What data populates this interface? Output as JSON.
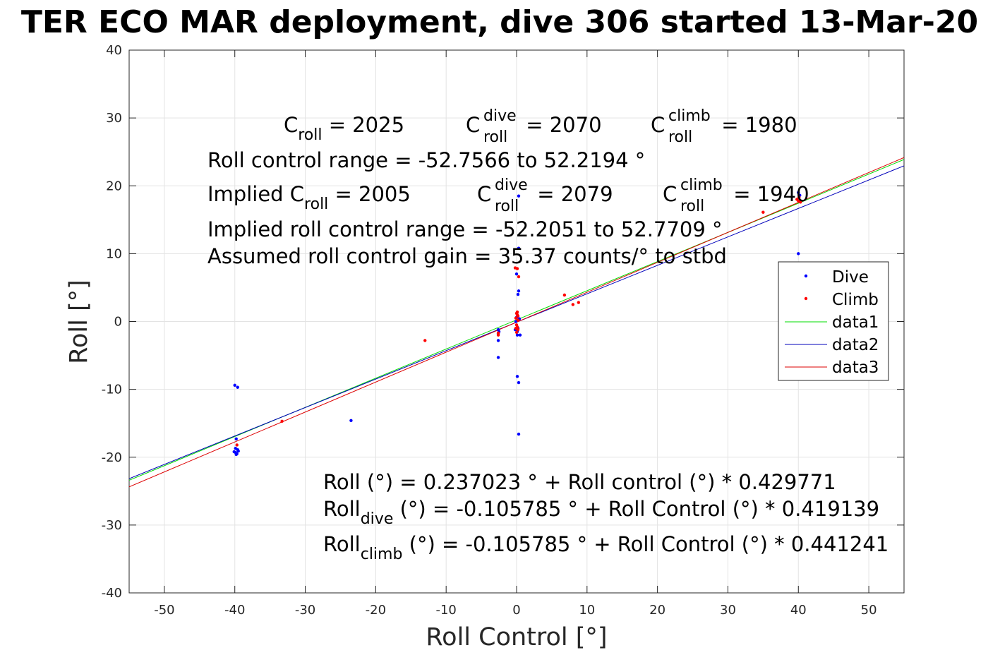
{
  "chart_data": {
    "type": "scatter",
    "title": "TER ECO MAR deployment, dive 306 started 13-Mar-20",
    "xlabel": "Roll Control [°]",
    "ylabel": "Roll [°]",
    "xlim": [
      -55,
      55
    ],
    "ylim": [
      -40,
      40
    ],
    "grid": true,
    "legend_placement": "right",
    "x_ticks": [
      "-50",
      "-40",
      "-30",
      "-20",
      "-10",
      "0",
      "10",
      "20",
      "30",
      "40",
      "50"
    ],
    "y_ticks": [
      "40",
      "30",
      "20",
      "10",
      "0",
      "-10",
      "-20",
      "-30",
      "-40"
    ],
    "series": [
      {
        "name": "Dive",
        "kind": "points",
        "color": "#0000ff",
        "points": [
          [
            -40.0,
            -9.4
          ],
          [
            -39.6,
            -9.7
          ],
          [
            -39.8,
            -17.3
          ],
          [
            -39.9,
            -18.7
          ],
          [
            -39.6,
            -18.9
          ],
          [
            -39.9,
            -19.3
          ],
          [
            -39.7,
            -19.5
          ],
          [
            -40.1,
            -19.2
          ],
          [
            -39.8,
            -19.6
          ],
          [
            -39.5,
            -19.1
          ],
          [
            -23.5,
            -14.6
          ],
          [
            -2.6,
            -1.2
          ],
          [
            -2.6,
            -1.8
          ],
          [
            -2.6,
            -2.8
          ],
          [
            -2.6,
            -5.3
          ],
          [
            -2.5,
            -1.5
          ],
          [
            0.0,
            7.0
          ],
          [
            0.3,
            18.5
          ],
          [
            0.3,
            10.8
          ],
          [
            0.3,
            4.5
          ],
          [
            0.2,
            4.0
          ],
          [
            0.1,
            -8.1
          ],
          [
            0.3,
            -9.0
          ],
          [
            0.3,
            -16.6
          ],
          [
            0.1,
            -2.0
          ],
          [
            0.2,
            -1.0
          ],
          [
            -0.1,
            0.0
          ],
          [
            0.4,
            0.4
          ],
          [
            0.1,
            -1.5
          ],
          [
            0.5,
            -2.0
          ],
          [
            -0.2,
            -1.2
          ],
          [
            0.0,
            0.6
          ],
          [
            40.0,
            10.0
          ],
          [
            40.0,
            19.0
          ],
          [
            40.2,
            18.6
          ]
        ]
      },
      {
        "name": "Climb",
        "kind": "points",
        "color": "#ff0000",
        "points": [
          [
            -39.7,
            -18.2
          ],
          [
            -33.3,
            -14.7
          ],
          [
            -13.0,
            -2.8
          ],
          [
            -2.6,
            -1.7
          ],
          [
            -2.6,
            -2.0
          ],
          [
            -0.2,
            7.9
          ],
          [
            0.1,
            7.8
          ],
          [
            0.3,
            6.6
          ],
          [
            0.0,
            1.2
          ],
          [
            0.1,
            1.0
          ],
          [
            -0.1,
            0.5
          ],
          [
            0.2,
            0.2
          ],
          [
            0.0,
            -0.5
          ],
          [
            0.1,
            -0.8
          ],
          [
            -0.1,
            -1.0
          ],
          [
            0.2,
            -1.2
          ],
          [
            0.0,
            -1.6
          ],
          [
            0.1,
            1.4
          ],
          [
            0.2,
            0.8
          ],
          [
            6.8,
            3.9
          ],
          [
            8.0,
            2.5
          ],
          [
            8.8,
            2.8
          ],
          [
            35.0,
            16.1
          ],
          [
            40.0,
            17.8
          ],
          [
            40.1,
            18.3
          ],
          [
            39.8,
            18.0
          ],
          [
            40.3,
            17.6
          ]
        ]
      },
      {
        "name": "data1",
        "kind": "line",
        "color": "#00dd00",
        "points": [
          [
            -55,
            -23.402
          ],
          [
            55,
            23.876
          ]
        ]
      },
      {
        "name": "data2",
        "kind": "line",
        "color": "#0000bb",
        "points": [
          [
            -55,
            -23.158
          ],
          [
            55,
            22.947
          ]
        ]
      },
      {
        "name": "data3",
        "kind": "line",
        "color": "#dd0000",
        "points": [
          [
            -55,
            -24.374
          ],
          [
            55,
            24.163
          ]
        ]
      }
    ],
    "annotations": {
      "croll": {
        "base": "C",
        "sub": "roll",
        "tail": " = 2025"
      },
      "croll_dive": {
        "base": "C",
        "sup": "dive",
        "sub": "roll",
        "tail": " = 2070"
      },
      "croll_climb": {
        "base": "C",
        "sup": "climb",
        "sub": "roll",
        "tail": " = 1980"
      },
      "range": "Roll control range = -52.7566 to 52.2194 °",
      "implied_croll": {
        "base": "Implied C",
        "sub": "roll",
        "tail": " = 2005"
      },
      "implied_dive": {
        "base": "C",
        "sup": "dive",
        "sub": "roll",
        "tail": " = 2079"
      },
      "implied_climb": {
        "base": "C",
        "sup": "climb",
        "sub": "roll",
        "tail": " = 1940"
      },
      "implied_range": "Implied roll control range = -52.2051 to 52.7709 °",
      "gain": "Assumed roll control gain = 35.37 counts/° to stbd",
      "fit": "Roll (°) = 0.237023 ° + Roll control (°) * 0.429771",
      "fit_dive": {
        "base": "Roll",
        "sub": "dive",
        "tail": " (°) = -0.105785 ° + Roll Control (°) * 0.419139"
      },
      "fit_climb": {
        "base": "Roll",
        "sub": "climb",
        "tail": " (°) = -0.105785 ° + Roll Control (°) * 0.441241"
      }
    }
  }
}
